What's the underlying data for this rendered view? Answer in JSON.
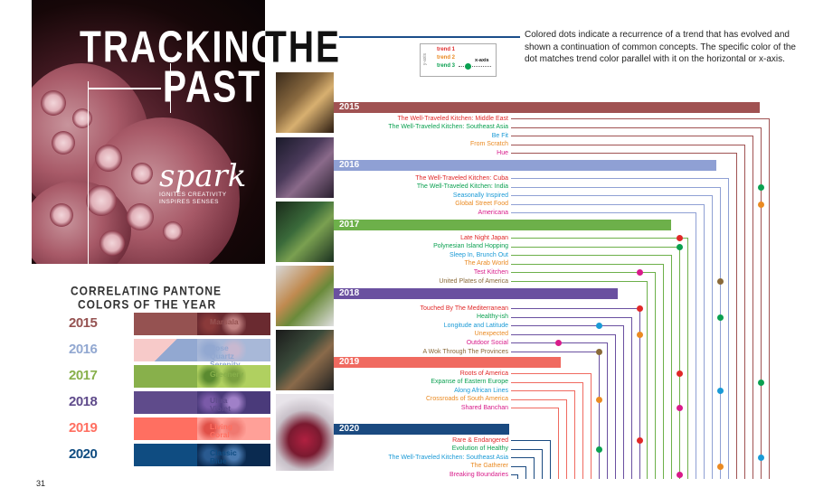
{
  "title": {
    "line1": "TRACKING",
    "line1b": "THE",
    "line2": "PAST"
  },
  "brand": {
    "name": "spark",
    "tagline": "IGNITES CREATIVITY\nINSPIRES SENSES"
  },
  "legend": {
    "text": "Colored dots indicate a recurrence of a trend that has evolved and shown a continuation of common concepts. The specific color of the dot matches trend color parallel with it on the horizontal or x-axis.",
    "y_label": "y-axis",
    "x_label": "x-axis",
    "items": [
      {
        "label": "trend 1",
        "color": "#e03030"
      },
      {
        "label": "trend 2",
        "color": "#ea8a22"
      },
      {
        "label": "trend 3",
        "color": "#0aa050"
      }
    ]
  },
  "pantone": {
    "title_line1": "CORRELATING PANTONE",
    "title_line2": "COLORS OF THE YEAR",
    "rows": [
      {
        "year": "2015",
        "name": "Marsala",
        "color": "#955251"
      },
      {
        "year": "2016",
        "name": "Rose Quartz\nSerenity",
        "color": "#92a8d1",
        "color2": "#f7cac9"
      },
      {
        "year": "2017",
        "name": "Greenery",
        "color": "#88b04b"
      },
      {
        "year": "2018",
        "name": "Ultra Violet",
        "color": "#5f4b8b"
      },
      {
        "year": "2019",
        "name": "Living Coral",
        "color": "#ff6f61"
      },
      {
        "year": "2020",
        "name": "Classic Blue",
        "color": "#0f4c81"
      }
    ]
  },
  "timeline": [
    {
      "year": "2015",
      "color": "#a05252",
      "trends": [
        {
          "label": "The Well-Traveled Kitchen: Middle East",
          "color": "#e02828"
        },
        {
          "label": "The Well-Traveled Kitchen: Southeast Asia",
          "color": "#0aa050"
        },
        {
          "label": "Be Fit",
          "color": "#1a9ad6"
        },
        {
          "label": "From Scratch",
          "color": "#ea8a22"
        },
        {
          "label": "Hue",
          "color": "#d81b8a"
        }
      ]
    },
    {
      "year": "2016",
      "color": "#8fa0d4",
      "trends": [
        {
          "label": "The Well-Traveled Kitchen: Cuba",
          "color": "#e02828"
        },
        {
          "label": "The Well-Traveled Kitchen: India",
          "color": "#0aa050"
        },
        {
          "label": "Seasonally Inspired",
          "color": "#1a9ad6"
        },
        {
          "label": "Global Street Food",
          "color": "#ea8a22"
        },
        {
          "label": "Americana",
          "color": "#d81b8a"
        }
      ]
    },
    {
      "year": "2017",
      "color": "#6db04a",
      "trends": [
        {
          "label": "Late Night Japan",
          "color": "#e02828"
        },
        {
          "label": "Polynesian Island Hopping",
          "color": "#0aa050"
        },
        {
          "label": "Sleep In, Brunch Out",
          "color": "#1a9ad6"
        },
        {
          "label": "The Arab World",
          "color": "#ea8a22"
        },
        {
          "label": "Test Kitchen",
          "color": "#d81b8a"
        },
        {
          "label": "United Plates of America",
          "color": "#8a6a3a"
        }
      ]
    },
    {
      "year": "2018",
      "color": "#6a50a0",
      "trends": [
        {
          "label": "Touched By The Mediterranean",
          "color": "#e02828"
        },
        {
          "label": "Healthy-ish",
          "color": "#0aa050"
        },
        {
          "label": "Longitude and Latitude",
          "color": "#1a9ad6"
        },
        {
          "label": "Unexpected",
          "color": "#ea8a22"
        },
        {
          "label": "Outdoor Social",
          "color": "#d81b8a"
        },
        {
          "label": "A Wok Through The Provinces",
          "color": "#8a6a3a"
        }
      ]
    },
    {
      "year": "2019",
      "color": "#f06a60",
      "trends": [
        {
          "label": "Roots of America",
          "color": "#e02828"
        },
        {
          "label": "Expanse of Eastern Europe",
          "color": "#0aa050"
        },
        {
          "label": "Along African Lines",
          "color": "#1a9ad6"
        },
        {
          "label": "Crossroads of South America",
          "color": "#ea8a22"
        },
        {
          "label": "Shared Banchan",
          "color": "#d81b8a"
        }
      ]
    },
    {
      "year": "2020",
      "color": "#1a4a80",
      "trends": [
        {
          "label": "Rare & Endangered",
          "color": "#e02828"
        },
        {
          "label": "Evolution of Healthy",
          "color": "#0aa050"
        },
        {
          "label": "The Well-Traveled Kitchen: Southeast Asia",
          "color": "#1a9ad6"
        },
        {
          "label": "The Gatherer",
          "color": "#ea8a22"
        },
        {
          "label": "Breaking Boundaries",
          "color": "#d81b8a"
        }
      ]
    }
  ],
  "page_number": "31"
}
